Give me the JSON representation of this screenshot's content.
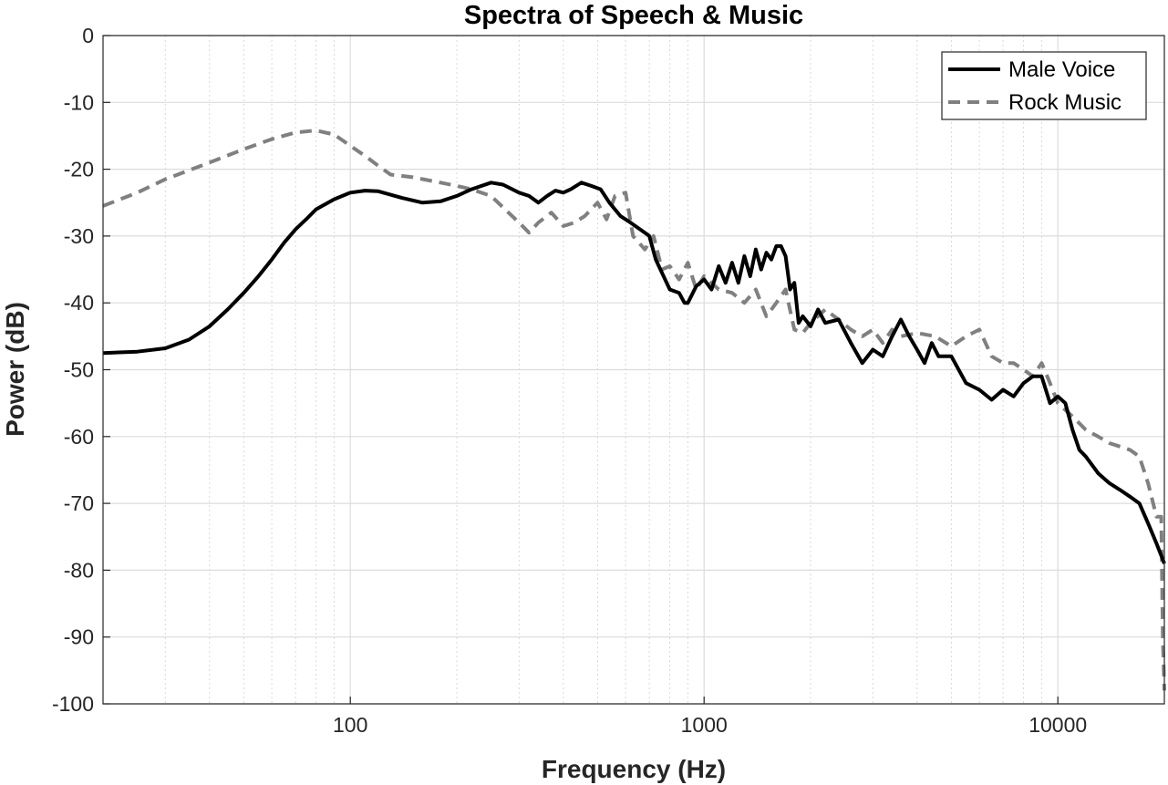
{
  "chart_data": {
    "type": "line",
    "title": "Spectra of Speech & Music",
    "xlabel": "Frequency (Hz)",
    "ylabel": "Power (dB)",
    "xscale": "log",
    "xlim": [
      20,
      20000
    ],
    "ylim": [
      -100,
      0
    ],
    "grid": true,
    "legend_position": "top-right",
    "x_ticks": [
      {
        "value": 100,
        "label": "100"
      },
      {
        "value": 1000,
        "label": "1000"
      },
      {
        "value": 10000,
        "label": "10000"
      }
    ],
    "y_ticks": [
      {
        "value": 0,
        "label": "0"
      },
      {
        "value": -10,
        "label": "-10"
      },
      {
        "value": -20,
        "label": "-20"
      },
      {
        "value": -30,
        "label": "-30"
      },
      {
        "value": -40,
        "label": "-40"
      },
      {
        "value": -50,
        "label": "-50"
      },
      {
        "value": -60,
        "label": "-60"
      },
      {
        "value": -70,
        "label": "-70"
      },
      {
        "value": -80,
        "label": "-80"
      },
      {
        "value": -90,
        "label": "-90"
      },
      {
        "value": -100,
        "label": "-100"
      }
    ],
    "series": [
      {
        "name": "Male Voice",
        "color": "#000000",
        "style": "solid",
        "points": [
          [
            20,
            -47.5
          ],
          [
            25,
            -47.3
          ],
          [
            30,
            -46.8
          ],
          [
            35,
            -45.5
          ],
          [
            40,
            -43.5
          ],
          [
            45,
            -41
          ],
          [
            50,
            -38.5
          ],
          [
            55,
            -36
          ],
          [
            60,
            -33.5
          ],
          [
            65,
            -31
          ],
          [
            70,
            -29
          ],
          [
            75,
            -27.5
          ],
          [
            80,
            -26
          ],
          [
            90,
            -24.5
          ],
          [
            100,
            -23.5
          ],
          [
            110,
            -23.2
          ],
          [
            120,
            -23.3
          ],
          [
            140,
            -24.3
          ],
          [
            160,
            -25
          ],
          [
            180,
            -24.8
          ],
          [
            200,
            -24
          ],
          [
            220,
            -23
          ],
          [
            250,
            -22
          ],
          [
            270,
            -22.3
          ],
          [
            300,
            -23.5
          ],
          [
            320,
            -24
          ],
          [
            340,
            -25
          ],
          [
            360,
            -24
          ],
          [
            380,
            -23.2
          ],
          [
            400,
            -23.5
          ],
          [
            420,
            -23
          ],
          [
            450,
            -22
          ],
          [
            480,
            -22.5
          ],
          [
            510,
            -23
          ],
          [
            540,
            -25
          ],
          [
            580,
            -27
          ],
          [
            620,
            -28
          ],
          [
            680,
            -29.5
          ],
          [
            700,
            -30
          ],
          [
            730,
            -33.5
          ],
          [
            760,
            -35.5
          ],
          [
            800,
            -38
          ],
          [
            850,
            -38.5
          ],
          [
            880,
            -40
          ],
          [
            900,
            -40
          ],
          [
            950,
            -37.5
          ],
          [
            1000,
            -36.5
          ],
          [
            1050,
            -38
          ],
          [
            1100,
            -34.5
          ],
          [
            1150,
            -37
          ],
          [
            1200,
            -34
          ],
          [
            1250,
            -37
          ],
          [
            1300,
            -33
          ],
          [
            1350,
            -36
          ],
          [
            1400,
            -32
          ],
          [
            1450,
            -35
          ],
          [
            1500,
            -32.5
          ],
          [
            1550,
            -33.5
          ],
          [
            1600,
            -31.5
          ],
          [
            1650,
            -31.5
          ],
          [
            1700,
            -33
          ],
          [
            1750,
            -38
          ],
          [
            1800,
            -37
          ],
          [
            1850,
            -43
          ],
          [
            1900,
            -42
          ],
          [
            2000,
            -43.5
          ],
          [
            2100,
            -41
          ],
          [
            2200,
            -43
          ],
          [
            2400,
            -42.5
          ],
          [
            2600,
            -46
          ],
          [
            2800,
            -49
          ],
          [
            3000,
            -47
          ],
          [
            3200,
            -48
          ],
          [
            3400,
            -45
          ],
          [
            3600,
            -42.5
          ],
          [
            3800,
            -45
          ],
          [
            4000,
            -47
          ],
          [
            4200,
            -49
          ],
          [
            4400,
            -46
          ],
          [
            4600,
            -48
          ],
          [
            5000,
            -48
          ],
          [
            5500,
            -52
          ],
          [
            6000,
            -53
          ],
          [
            6500,
            -54.5
          ],
          [
            7000,
            -53
          ],
          [
            7500,
            -54
          ],
          [
            8000,
            -52
          ],
          [
            8500,
            -51
          ],
          [
            9000,
            -51
          ],
          [
            9500,
            -55
          ],
          [
            10000,
            -54
          ],
          [
            10500,
            -55
          ],
          [
            11000,
            -59
          ],
          [
            11500,
            -62
          ],
          [
            12000,
            -63
          ],
          [
            13000,
            -65.5
          ],
          [
            14000,
            -67
          ],
          [
            15000,
            -68
          ],
          [
            16000,
            -69
          ],
          [
            17000,
            -70
          ],
          [
            18000,
            -73
          ],
          [
            19000,
            -76
          ],
          [
            20000,
            -79
          ]
        ]
      },
      {
        "name": "Rock Music",
        "color": "#808080",
        "style": "dashed",
        "points": [
          [
            20,
            -25.5
          ],
          [
            25,
            -23.5
          ],
          [
            30,
            -21.5
          ],
          [
            40,
            -19
          ],
          [
            50,
            -17
          ],
          [
            60,
            -15.5
          ],
          [
            70,
            -14.5
          ],
          [
            80,
            -14.2
          ],
          [
            90,
            -14.8
          ],
          [
            100,
            -16.5
          ],
          [
            110,
            -18
          ],
          [
            120,
            -19.5
          ],
          [
            130,
            -20.8
          ],
          [
            150,
            -21.2
          ],
          [
            180,
            -22
          ],
          [
            200,
            -22.5
          ],
          [
            220,
            -23
          ],
          [
            250,
            -24
          ],
          [
            280,
            -26.5
          ],
          [
            300,
            -28
          ],
          [
            320,
            -29.5
          ],
          [
            340,
            -28
          ],
          [
            370,
            -26.5
          ],
          [
            400,
            -28.5
          ],
          [
            430,
            -28
          ],
          [
            460,
            -27
          ],
          [
            500,
            -25
          ],
          [
            530,
            -27.5
          ],
          [
            560,
            -24
          ],
          [
            600,
            -23.5
          ],
          [
            630,
            -30
          ],
          [
            680,
            -32
          ],
          [
            720,
            -30
          ],
          [
            760,
            -35
          ],
          [
            800,
            -34.5
          ],
          [
            850,
            -36.5
          ],
          [
            900,
            -34
          ],
          [
            950,
            -38
          ],
          [
            1000,
            -36
          ],
          [
            1100,
            -38
          ],
          [
            1200,
            -38.5
          ],
          [
            1300,
            -40
          ],
          [
            1400,
            -38
          ],
          [
            1500,
            -42
          ],
          [
            1600,
            -40
          ],
          [
            1700,
            -38
          ],
          [
            1800,
            -44
          ],
          [
            1900,
            -44.5
          ],
          [
            2000,
            -43
          ],
          [
            2200,
            -41
          ],
          [
            2400,
            -42.5
          ],
          [
            2600,
            -44
          ],
          [
            2800,
            -45
          ],
          [
            3000,
            -44
          ],
          [
            3200,
            -46
          ],
          [
            3400,
            -44
          ],
          [
            3600,
            -45
          ],
          [
            4000,
            -44.5
          ],
          [
            4500,
            -45
          ],
          [
            5000,
            -46.5
          ],
          [
            5500,
            -45
          ],
          [
            6000,
            -44
          ],
          [
            6500,
            -48
          ],
          [
            7000,
            -49
          ],
          [
            7500,
            -49
          ],
          [
            8000,
            -50
          ],
          [
            8500,
            -51
          ],
          [
            9000,
            -49
          ],
          [
            9500,
            -52
          ],
          [
            10000,
            -55
          ],
          [
            11000,
            -57
          ],
          [
            12000,
            -59
          ],
          [
            13000,
            -60
          ],
          [
            14000,
            -61
          ],
          [
            15000,
            -61.5
          ],
          [
            16000,
            -62
          ],
          [
            17000,
            -63
          ],
          [
            18000,
            -67
          ],
          [
            19000,
            -72
          ],
          [
            19600,
            -72
          ],
          [
            19800,
            -90
          ],
          [
            20000,
            -98
          ]
        ]
      }
    ]
  }
}
